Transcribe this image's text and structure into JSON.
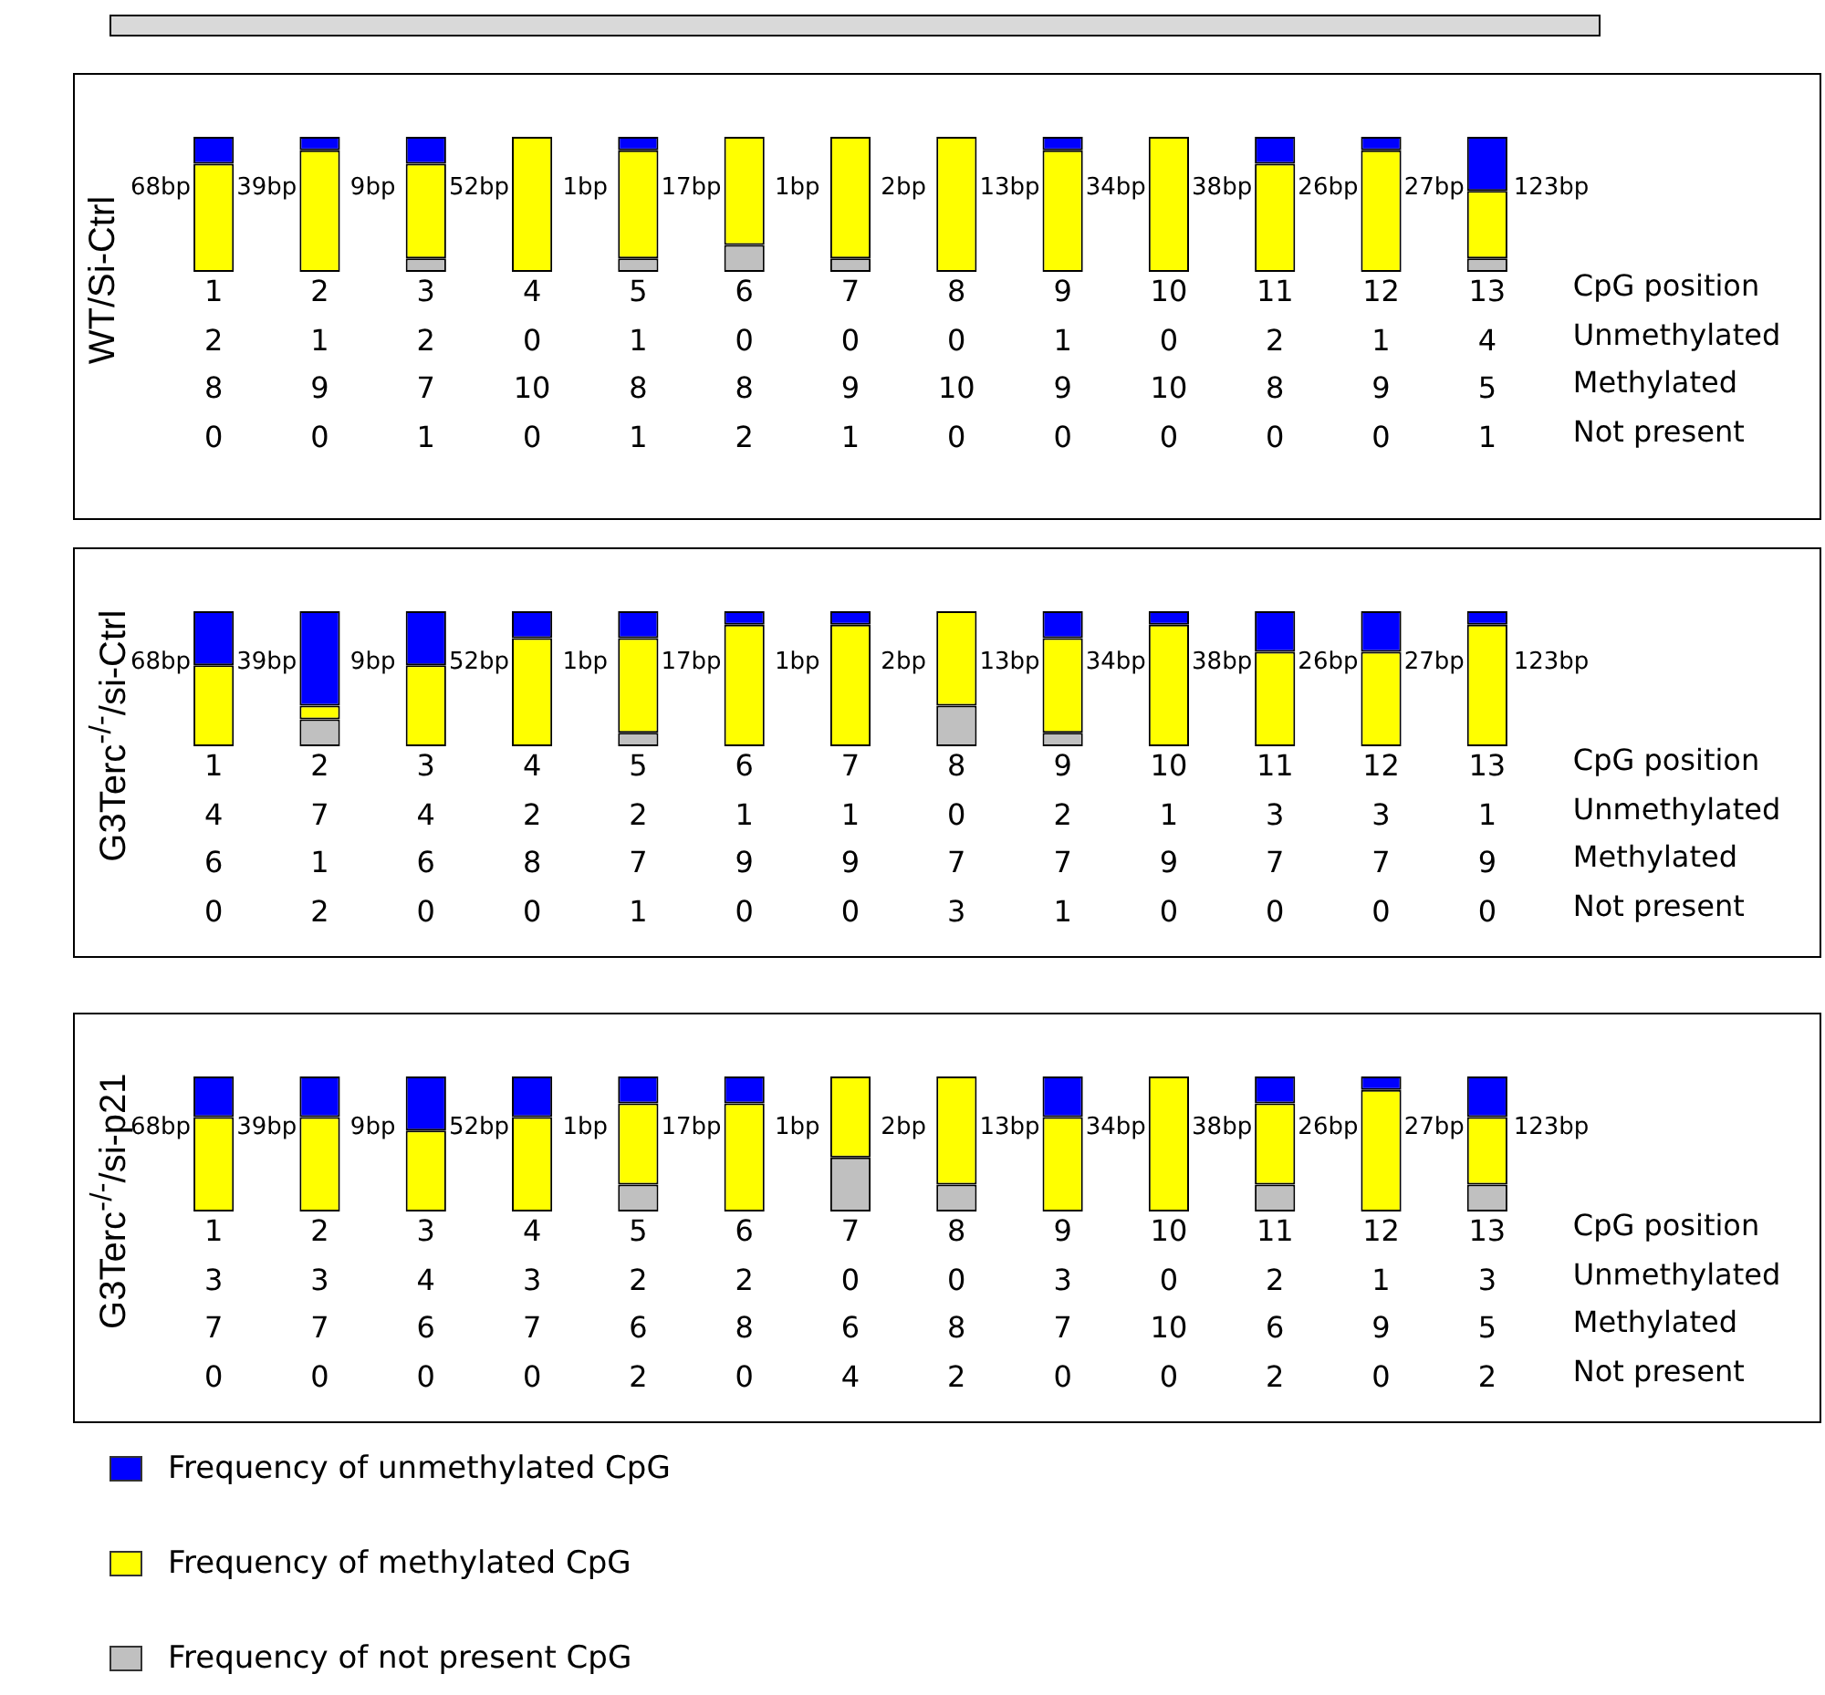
{
  "chart_data": [
    {
      "type": "bar",
      "stacked": true,
      "data_labels": true,
      "ylabel": "WT/Si-Ctrl",
      "categories": [
        "1",
        "2",
        "3",
        "4",
        "5",
        "6",
        "7",
        "8",
        "9",
        "10",
        "11",
        "12",
        "13"
      ],
      "annotations": [
        "68bp",
        "39bp",
        "9bp",
        "52bp",
        "1bp",
        "17bp",
        "1bp",
        "2bp",
        "13bp",
        "34bp",
        "38bp",
        "26bp",
        "27bp",
        "123bp",
        "CpG position",
        "Unmethylated",
        "Methylated",
        "Not present"
      ],
      "series": [
        {
          "color": "#c0c0c0",
          "values": [
            0,
            0,
            1,
            0,
            1,
            2,
            1,
            0,
            0,
            0,
            0,
            0,
            1
          ]
        },
        {
          "color": "#ffff00",
          "values": [
            8,
            9,
            7,
            10,
            8,
            8,
            9,
            10,
            9,
            10,
            8,
            9,
            5
          ]
        },
        {
          "color": "#0000ff",
          "values": [
            2,
            1,
            2,
            0,
            1,
            0,
            0,
            0,
            1,
            0,
            2,
            1,
            4
          ]
        }
      ]
    },
    {
      "type": "bar",
      "stacked": true,
      "data_labels": true,
      "ylabel": "G3Terc$^{-/-}$/si-Ctrl",
      "categories": [
        "1",
        "2",
        "3",
        "4",
        "5",
        "6",
        "7",
        "8",
        "9",
        "10",
        "11",
        "12",
        "13"
      ],
      "annotations": [
        "68bp",
        "39bp",
        "9bp",
        "52bp",
        "1bp",
        "17bp",
        "1bp",
        "2bp",
        "13bp",
        "34bp",
        "38bp",
        "26bp",
        "27bp",
        "123bp",
        "CpG position",
        "Unmethylated",
        "Methylated",
        "Not present"
      ],
      "series": [
        {
          "color": "#c0c0c0",
          "values": [
            0,
            2,
            0,
            0,
            1,
            0,
            0,
            3,
            1,
            0,
            0,
            0,
            0
          ]
        },
        {
          "color": "#ffff00",
          "values": [
            6,
            1,
            6,
            8,
            7,
            9,
            9,
            7,
            7,
            9,
            7,
            7,
            9
          ]
        },
        {
          "color": "#0000ff",
          "values": [
            4,
            7,
            4,
            2,
            2,
            1,
            1,
            0,
            2,
            1,
            3,
            3,
            1
          ]
        }
      ]
    },
    {
      "type": "bar",
      "stacked": true,
      "data_labels": true,
      "ylabel": "G3Terc$^{-/-}$/si-p21",
      "legend": "bottom",
      "categories": [
        "1",
        "2",
        "3",
        "4",
        "5",
        "6",
        "7",
        "8",
        "9",
        "10",
        "11",
        "12",
        "13"
      ],
      "annotations": [
        "68bp",
        "39bp",
        "9bp",
        "52bp",
        "1bp",
        "17bp",
        "1bp",
        "2bp",
        "13bp",
        "34bp",
        "38bp",
        "26bp",
        "27bp",
        "123bp",
        "CpG position",
        "Unmethylated",
        "Methylated",
        "Not present"
      ],
      "series": [
        {
          "name": "Frequency of not present CpG",
          "color": "#c0c0c0",
          "values": [
            0,
            0,
            0,
            0,
            2,
            0,
            4,
            2,
            0,
            0,
            2,
            0,
            2
          ]
        },
        {
          "name": "Frequency of methylated CpG",
          "color": "#ffff00",
          "values": [
            7,
            7,
            6,
            7,
            6,
            8,
            6,
            8,
            7,
            10,
            6,
            9,
            5
          ]
        },
        {
          "name": "Frequency of unmethylated CpG",
          "color": "#0000ff",
          "values": [
            3,
            3,
            4,
            3,
            2,
            2,
            0,
            0,
            3,
            0,
            2,
            1,
            3
          ]
        }
      ]
    }
  ]
}
